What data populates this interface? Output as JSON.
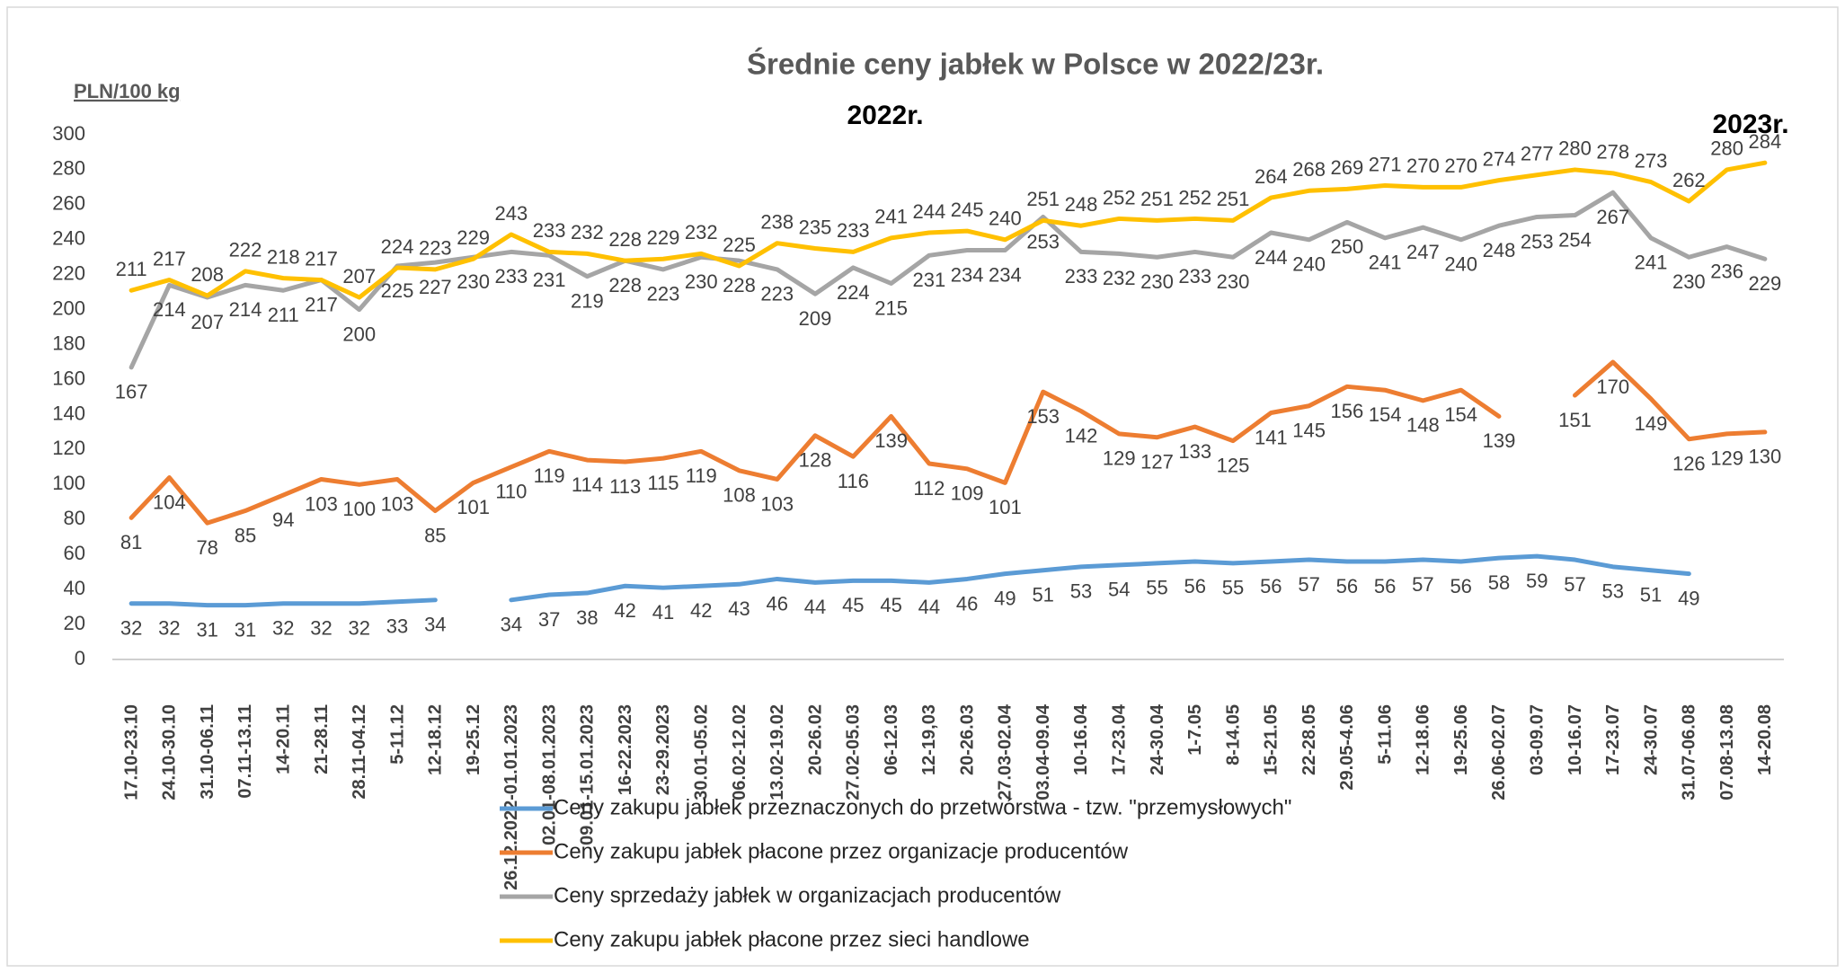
{
  "chart_data": {
    "type": "line",
    "title": "Średnie ceny jabłek w Polsce w 2022/23r.",
    "y_label": "PLN/100 kg",
    "annotations": [
      "2022r.",
      "2023r."
    ],
    "categories": [
      "17.10-23.10",
      "24.10-30.10",
      "31.10-06.11",
      "07.11-13.11",
      "14-20.11",
      "21-28.11",
      "28.11-04.12",
      "5-11.12",
      "12-18.12",
      "19-25.12",
      "26.12.2022-01.01.2023",
      "02.01-08.01.2023",
      "09.01-15.01.2023",
      "16-22.2023",
      "23-29.2023",
      "30.01-05.02",
      "06.02-12.02",
      "13.02-19.02",
      "20-26.02",
      "27.02-05.03",
      "06-12.03",
      "12-19,03",
      "20-26.03",
      "27.03-02.04",
      "03.04-09.04",
      "10-16.04",
      "17-23.04",
      "24-30.04",
      "1-7.05",
      "8-14.05",
      "15-21.05",
      "22-28.05",
      "29.05-4.06",
      "5-11.06",
      "12-18.06",
      "19-25.06",
      "26.06-02.07",
      "03-09.07",
      "10-16.07",
      "17-23.07",
      "24-30.07",
      "31.07-06.08",
      "07.08-13.08",
      "14-20.08"
    ],
    "series": [
      {
        "name": "Ceny zakupu jabłek przeznaczonych do przetwórstwa - tzw. \"przemysłowych\"",
        "color": "#5b9bd5",
        "values": [
          32,
          32,
          31,
          31,
          32,
          32,
          32,
          33,
          34,
          null,
          34,
          37,
          38,
          42,
          41,
          42,
          43,
          46,
          44,
          45,
          45,
          44,
          46,
          49,
          51,
          53,
          54,
          55,
          56,
          55,
          56,
          57,
          56,
          56,
          57,
          56,
          58,
          59,
          57,
          53,
          51,
          49,
          null,
          null
        ]
      },
      {
        "name": "Ceny zakupu jabłek płacone przez organizacje  producentów",
        "color": "#ed7d31",
        "values": [
          81,
          104,
          78,
          85,
          94,
          103,
          100,
          103,
          85,
          101,
          110,
          119,
          114,
          113,
          115,
          119,
          108,
          103,
          128,
          116,
          139,
          112,
          109,
          101,
          153,
          142,
          129,
          127,
          133,
          125,
          141,
          145,
          156,
          154,
          148,
          154,
          139,
          null,
          151,
          170,
          149,
          126,
          129,
          130
        ]
      },
      {
        "name": "Ceny sprzedaży jabłek w organizacjach  producentów",
        "color": "#a5a5a5",
        "values": [
          167,
          214,
          207,
          214,
          211,
          217,
          200,
          225,
          227,
          230,
          233,
          231,
          219,
          228,
          223,
          230,
          228,
          223,
          209,
          224,
          215,
          231,
          234,
          234,
          253,
          233,
          232,
          230,
          233,
          230,
          244,
          240,
          250,
          241,
          247,
          240,
          248,
          253,
          254,
          267,
          241,
          230,
          236,
          229
        ]
      },
      {
        "name": "Ceny zakupu jabłek płacone przez sieci handlowe",
        "color": "#ffc000",
        "values": [
          211,
          217,
          208,
          222,
          218,
          217,
          207,
          224,
          223,
          229,
          243,
          233,
          232,
          228,
          229,
          232,
          225,
          238,
          235,
          233,
          241,
          244,
          245,
          240,
          251,
          248,
          252,
          251,
          252,
          251,
          264,
          268,
          269,
          271,
          270,
          270,
          274,
          277,
          280,
          278,
          273,
          262,
          280,
          284
        ]
      }
    ],
    "ylim": [
      0,
      300
    ],
    "yticks": [
      0,
      20,
      40,
      60,
      80,
      100,
      120,
      140,
      160,
      180,
      200,
      220,
      240,
      260,
      280,
      300
    ],
    "grid": false,
    "legend": "bottom"
  }
}
